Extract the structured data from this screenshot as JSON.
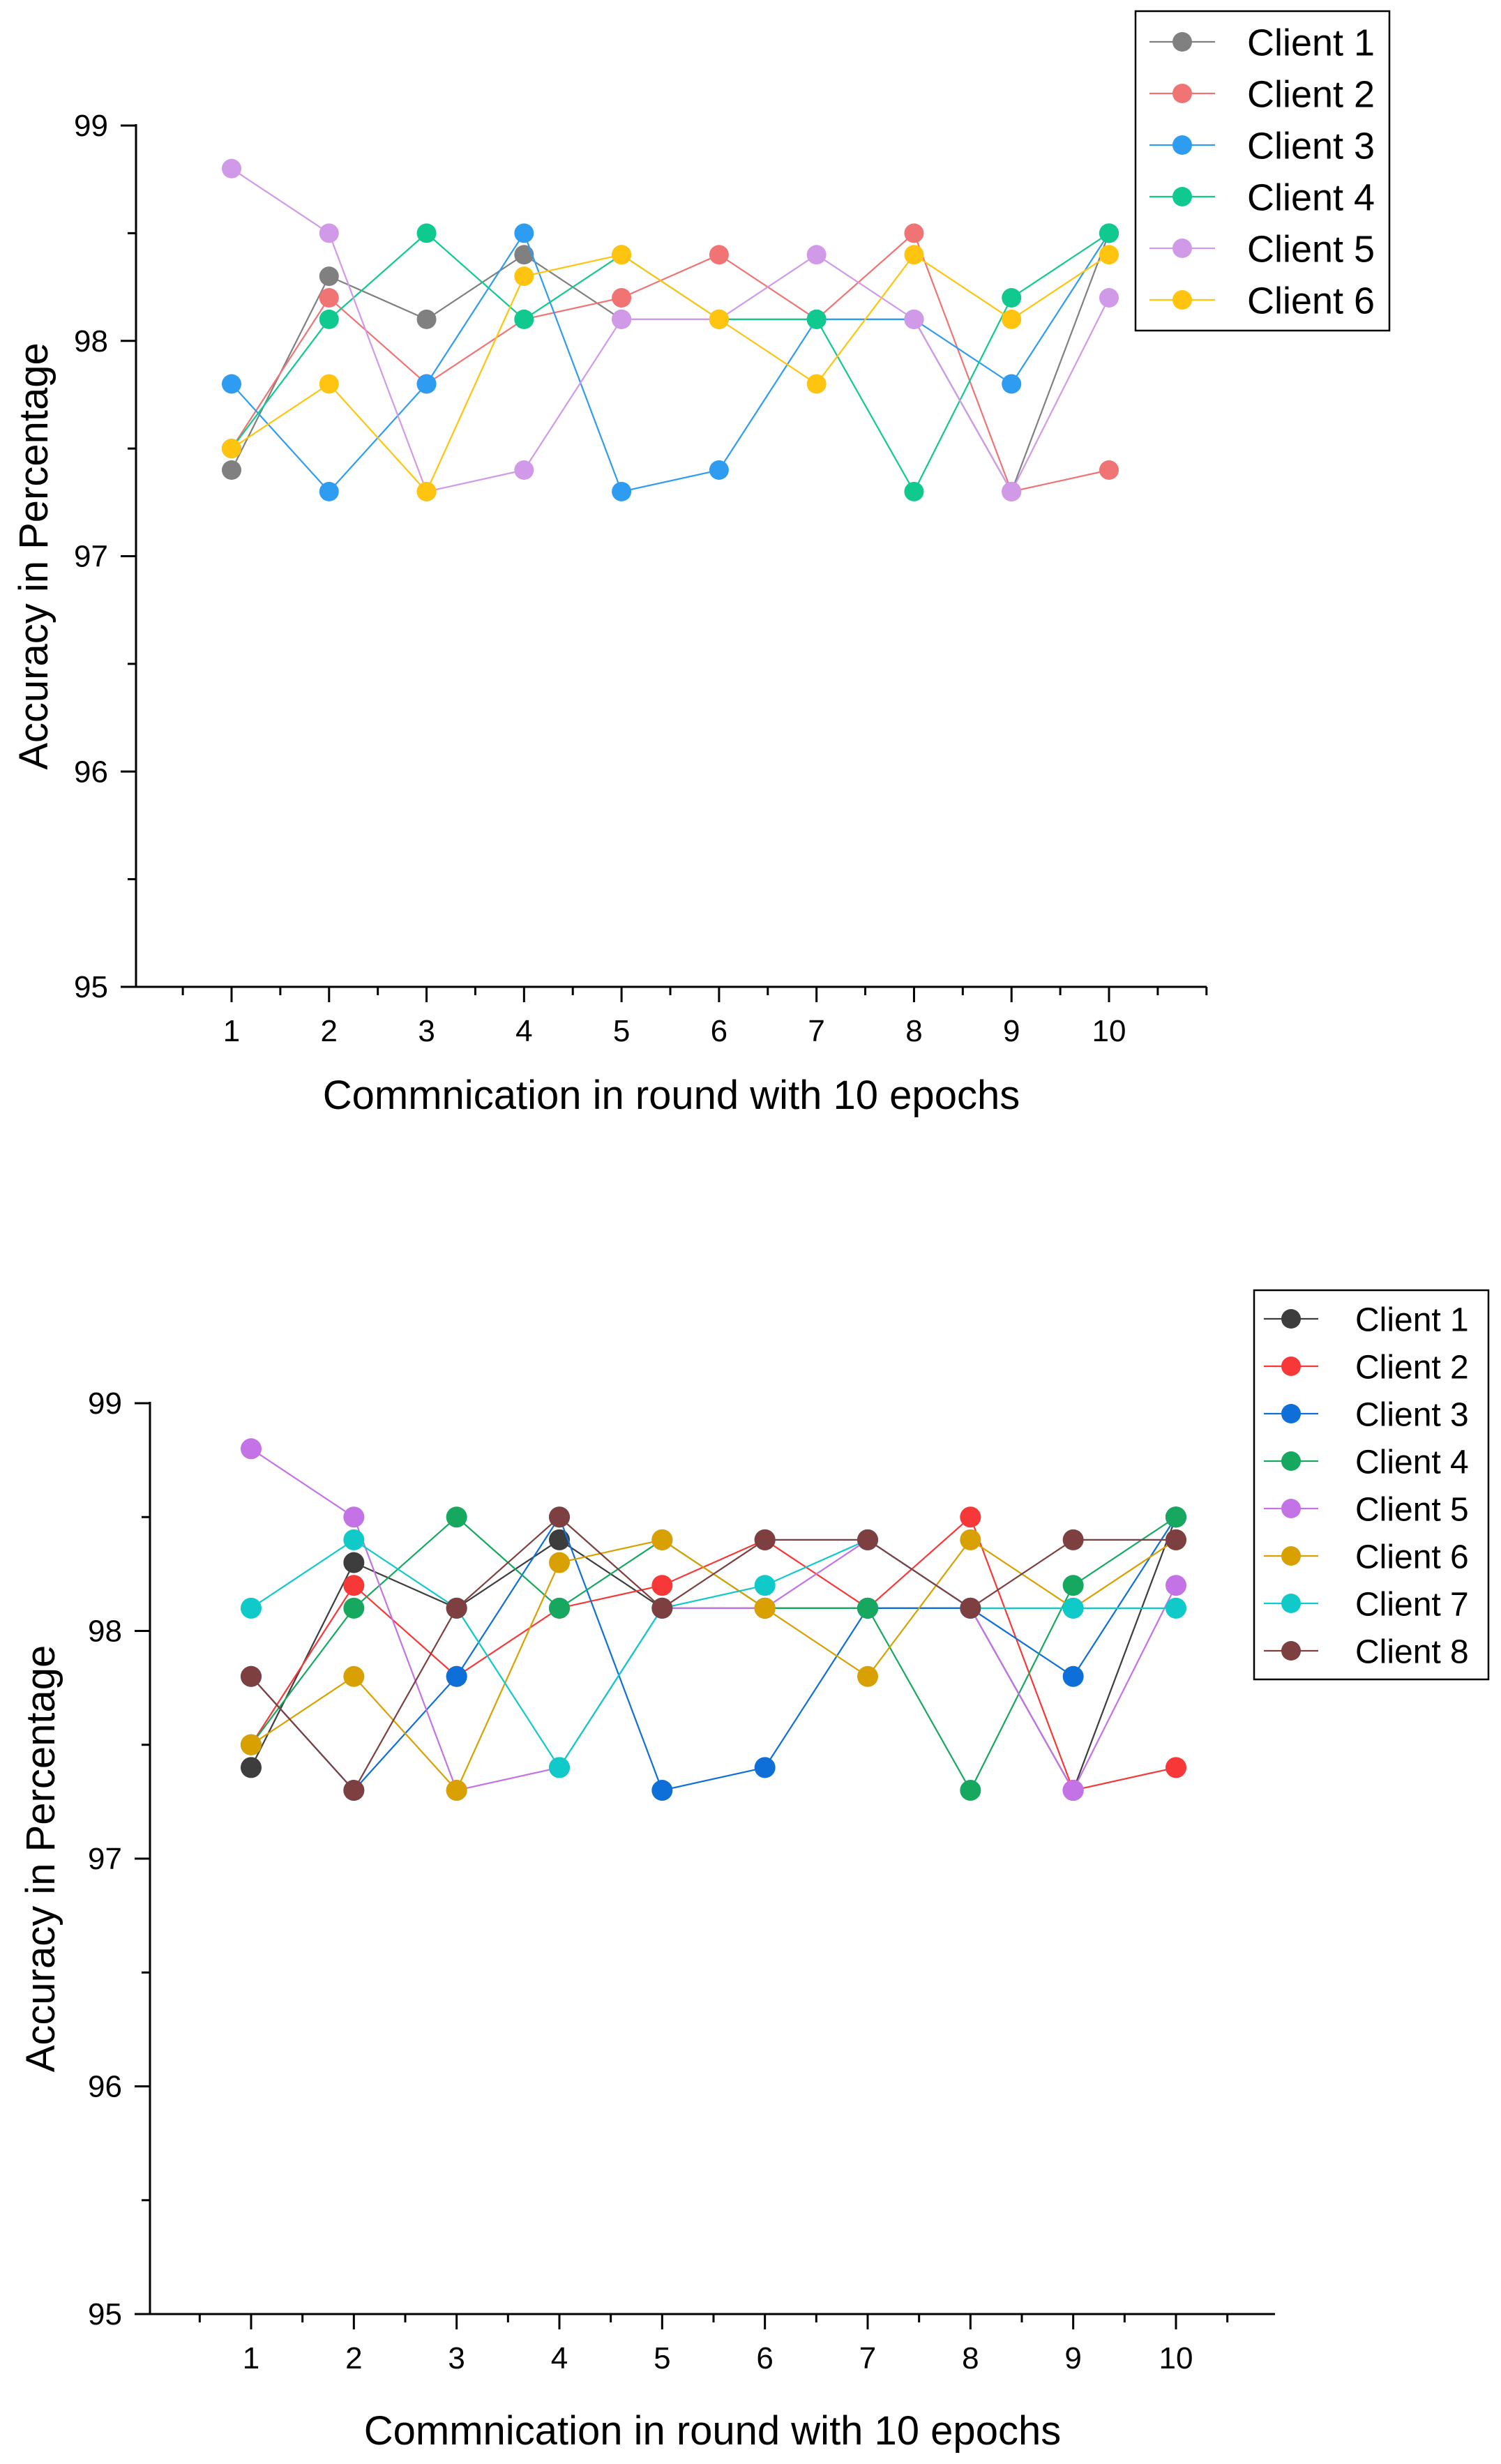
{
  "chart_data": [
    {
      "type": "line",
      "x": [
        1,
        2,
        3,
        4,
        5,
        6,
        7,
        8,
        9,
        10
      ],
      "xlabel": "Commnication in round with 10 epochs",
      "ylabel": "Accuracy in Percentage",
      "ylim": [
        95,
        99
      ],
      "xticks": [
        "1",
        "2",
        "3",
        "4",
        "5",
        "6",
        "7",
        "8",
        "9",
        "10"
      ],
      "yticks": [
        "95",
        "96",
        "97",
        "98",
        "99"
      ],
      "legend_position": "top-right",
      "series": [
        {
          "name": "Client 1",
          "color": "#808080",
          "values": [
            97.4,
            98.3,
            98.1,
            98.4,
            98.1,
            98.1,
            98.1,
            98.1,
            97.3,
            98.5
          ]
        },
        {
          "name": "Client 2",
          "color": "#f07474",
          "values": [
            97.5,
            98.2,
            97.8,
            98.1,
            98.2,
            98.4,
            98.1,
            98.5,
            97.3,
            97.4
          ]
        },
        {
          "name": "Client 3",
          "color": "#2e9cf0",
          "values": [
            97.8,
            97.3,
            97.8,
            98.5,
            97.3,
            97.4,
            98.1,
            98.1,
            97.8,
            98.5
          ]
        },
        {
          "name": "Client 4",
          "color": "#10c98f",
          "values": [
            97.5,
            98.1,
            98.5,
            98.1,
            98.4,
            98.1,
            98.1,
            97.3,
            98.2,
            98.5
          ]
        },
        {
          "name": "Client 5",
          "color": "#d09ae8",
          "values": [
            98.8,
            98.5,
            97.3,
            97.4,
            98.1,
            98.1,
            98.4,
            98.1,
            97.3,
            98.2
          ]
        },
        {
          "name": "Client 6",
          "color": "#ffc410",
          "values": [
            97.5,
            97.8,
            97.3,
            98.3,
            98.4,
            98.1,
            97.8,
            98.4,
            98.1,
            98.4
          ]
        }
      ]
    },
    {
      "type": "line",
      "x": [
        1,
        2,
        3,
        4,
        5,
        6,
        7,
        8,
        9,
        10
      ],
      "xlabel": "Commnication in round with 10 epochs",
      "ylabel": "Accuracy in Percentage",
      "ylim": [
        95,
        99
      ],
      "xticks": [
        "1",
        "2",
        "3",
        "4",
        "5",
        "6",
        "7",
        "8",
        "9",
        "10"
      ],
      "yticks": [
        "95",
        "96",
        "97",
        "98",
        "99"
      ],
      "legend_position": "top-right",
      "series": [
        {
          "name": "Client 1",
          "color": "#3d3d3d",
          "values": [
            97.4,
            98.3,
            98.1,
            98.4,
            98.1,
            98.1,
            98.1,
            98.1,
            97.3,
            98.5
          ]
        },
        {
          "name": "Client 2",
          "color": "#f83838",
          "values": [
            97.5,
            98.2,
            97.8,
            98.1,
            98.2,
            98.4,
            98.1,
            98.5,
            97.3,
            97.4
          ]
        },
        {
          "name": "Client 3",
          "color": "#0f6fd9",
          "values": [
            97.8,
            97.3,
            97.8,
            98.5,
            97.3,
            97.4,
            98.1,
            98.1,
            97.8,
            98.5
          ]
        },
        {
          "name": "Client 4",
          "color": "#17a860",
          "values": [
            97.5,
            98.1,
            98.5,
            98.1,
            98.4,
            98.1,
            98.1,
            97.3,
            98.2,
            98.5
          ]
        },
        {
          "name": "Client 5",
          "color": "#c373e6",
          "values": [
            98.8,
            98.5,
            97.3,
            97.4,
            98.1,
            98.1,
            98.4,
            98.1,
            97.3,
            98.2
          ]
        },
        {
          "name": "Client 6",
          "color": "#d8a000",
          "values": [
            97.5,
            97.8,
            97.3,
            98.3,
            98.4,
            98.1,
            97.8,
            98.4,
            98.1,
            98.4
          ]
        },
        {
          "name": "Client 7",
          "color": "#10c9c9",
          "values": [
            98.1,
            98.4,
            98.1,
            97.4,
            98.1,
            98.2,
            98.4,
            98.1,
            98.1,
            98.1
          ]
        },
        {
          "name": "Client 8",
          "color": "#7d3f3f",
          "values": [
            97.8,
            97.3,
            98.1,
            98.5,
            98.1,
            98.4,
            98.4,
            98.1,
            98.4,
            98.4
          ]
        }
      ]
    }
  ]
}
